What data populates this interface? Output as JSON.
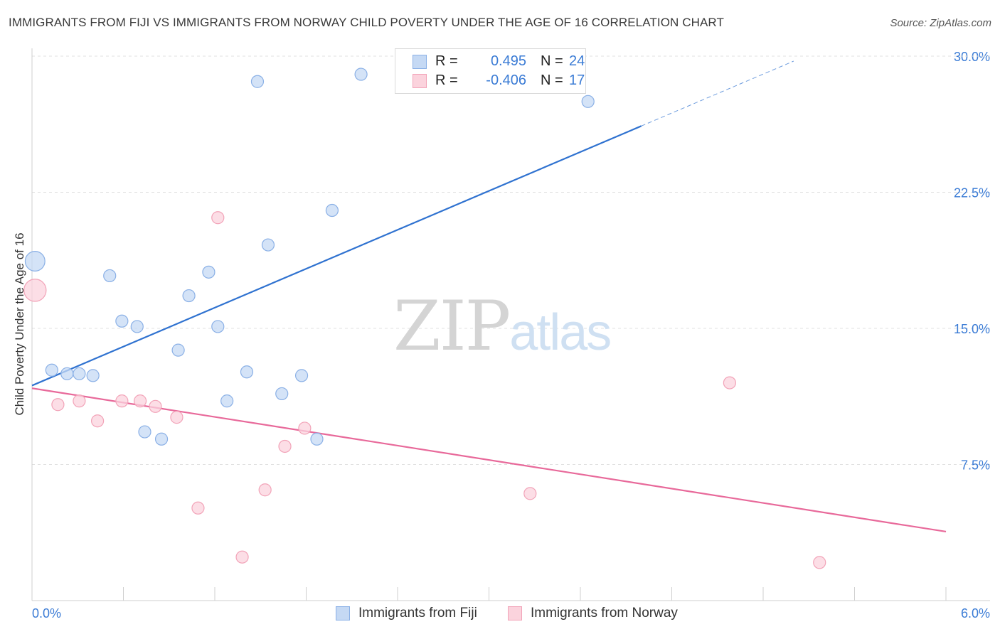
{
  "title": "IMMIGRANTS FROM FIJI VS IMMIGRANTS FROM NORWAY CHILD POVERTY UNDER THE AGE OF 16 CORRELATION CHART",
  "source": "Source: ZipAtlas.com",
  "watermark": {
    "zip": "ZIP",
    "atlas": "atlas"
  },
  "legend": {
    "fiji": {
      "r_label": "R =",
      "r_value": "0.495",
      "n_label": "N =",
      "n_value": "24"
    },
    "norway": {
      "r_label": "R =",
      "r_value": "-0.406",
      "n_label": "N =",
      "n_value": "17"
    }
  },
  "colors": {
    "fiji_fill": "#c5d9f4",
    "fiji_stroke": "#8ab0e6",
    "fiji_line": "#2f72d0",
    "norway_fill": "#fbd3dd",
    "norway_stroke": "#f2a3b8",
    "norway_line": "#e8699a",
    "tick_label": "#3a7bd5",
    "grid": "#e0e0e0"
  },
  "chart_data": {
    "type": "scatter",
    "title": "IMMIGRANTS FROM FIJI VS IMMIGRANTS FROM NORWAY CHILD POVERTY UNDER THE AGE OF 16 CORRELATION CHART",
    "xlabel": "",
    "ylabel": "Child Poverty Under the Age of 16",
    "xlim": [
      0,
      6
    ],
    "ylim": [
      0,
      30
    ],
    "x_tick_labels": [
      "0.0%",
      "6.0%"
    ],
    "y_ticks": [
      7.5,
      15.0,
      22.5,
      30.0
    ],
    "y_tick_labels": [
      "7.5%",
      "15.0%",
      "22.5%",
      "30.0%"
    ],
    "grid": true,
    "legend_position": "top-center",
    "series": [
      {
        "name": "Immigrants from Fiji",
        "points": [
          [
            0.02,
            18.7,
            1.6
          ],
          [
            0.13,
            12.7,
            1
          ],
          [
            0.23,
            12.5,
            1
          ],
          [
            0.31,
            12.5,
            1
          ],
          [
            0.4,
            12.4,
            1
          ],
          [
            0.51,
            17.9,
            1
          ],
          [
            0.59,
            15.4,
            1
          ],
          [
            0.69,
            15.1,
            1
          ],
          [
            0.74,
            9.3,
            1
          ],
          [
            0.85,
            8.9,
            1
          ],
          [
            0.96,
            13.8,
            1
          ],
          [
            1.03,
            16.8,
            1
          ],
          [
            1.16,
            18.1,
            1
          ],
          [
            1.22,
            15.1,
            1
          ],
          [
            1.28,
            11.0,
            1
          ],
          [
            1.41,
            12.6,
            1
          ],
          [
            1.48,
            28.6,
            1
          ],
          [
            1.55,
            19.6,
            1
          ],
          [
            1.64,
            11.4,
            1
          ],
          [
            1.77,
            12.4,
            1
          ],
          [
            1.87,
            8.9,
            1
          ],
          [
            1.97,
            21.5,
            1
          ],
          [
            2.16,
            29.0,
            1
          ],
          [
            3.65,
            27.5,
            1
          ]
        ],
        "trendline": {
          "x": [
            0,
            4
          ],
          "y": [
            11.85,
            26.15
          ],
          "dashed_extension_to_x": 5.0
        }
      },
      {
        "name": "Immigrants from Norway",
        "points": [
          [
            0.02,
            17.1,
            1.8
          ],
          [
            0.17,
            10.8,
            1
          ],
          [
            0.31,
            11.0,
            1
          ],
          [
            0.43,
            9.9,
            1
          ],
          [
            0.59,
            11.0,
            1
          ],
          [
            0.71,
            11.0,
            1
          ],
          [
            0.81,
            10.7,
            1
          ],
          [
            0.95,
            10.1,
            1
          ],
          [
            1.09,
            5.1,
            1
          ],
          [
            1.22,
            21.1,
            1
          ],
          [
            1.38,
            2.4,
            1
          ],
          [
            1.53,
            6.1,
            1
          ],
          [
            1.66,
            8.5,
            1
          ],
          [
            1.79,
            9.5,
            1
          ],
          [
            3.27,
            5.9,
            1
          ],
          [
            4.58,
            12.0,
            1
          ],
          [
            5.17,
            2.1,
            1
          ]
        ],
        "trendline": {
          "x": [
            0,
            6
          ],
          "y": [
            11.7,
            3.8
          ]
        }
      }
    ]
  },
  "bottom_legend": {
    "fiji": "Immigrants from Fiji",
    "norway": "Immigrants from Norway"
  }
}
